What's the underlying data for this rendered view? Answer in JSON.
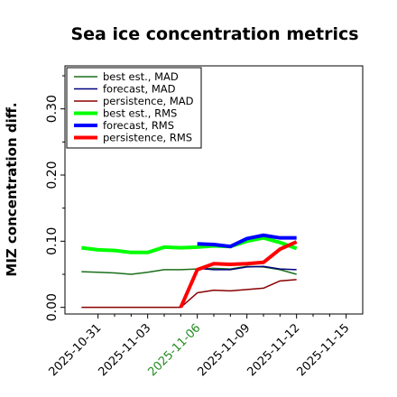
{
  "chart_data": {
    "type": "line",
    "title": "Sea ice concentration metrics",
    "ylabel": "MIZ concentration diff.",
    "xlabel": "",
    "ylim": [
      -0.01,
      0.365
    ],
    "xlim": [
      "2025-10-29",
      "2025-11-16"
    ],
    "y_ticks": [
      0.0,
      0.1,
      0.2,
      0.3
    ],
    "y_tick_labels": [
      "0.00",
      "0.10",
      "0.20",
      "0.30"
    ],
    "y_minor_ticks": [
      0.05,
      0.15,
      0.25,
      0.35
    ],
    "x_ticks": [
      "2025-10-31",
      "2025-11-03",
      "2025-11-06",
      "2025-11-09",
      "2025-11-12",
      "2025-11-15"
    ],
    "x_tick_labels": [
      "2025-10-31",
      "2025-11-03",
      "2025-11-06",
      "2025-11-09",
      "2025-11-12",
      "2025-11-15"
    ],
    "x_tick_colors": [
      "#000000",
      "#000000",
      "#228b22",
      "#000000",
      "#000000",
      "#000000"
    ],
    "x_minor_ticks": [
      "2025-11-01",
      "2025-11-02",
      "2025-11-04",
      "2025-11-05",
      "2025-11-07",
      "2025-11-08",
      "2025-11-10",
      "2025-11-11",
      "2025-11-13",
      "2025-11-14"
    ],
    "grid": false,
    "legend_position": "top-left",
    "series": [
      {
        "name": "best est., MAD",
        "color": "#1a6e1a",
        "width": 1.5,
        "x": [
          "2025-10-30",
          "2025-10-31",
          "2025-11-01",
          "2025-11-02",
          "2025-11-03",
          "2025-11-04",
          "2025-11-05",
          "2025-11-06",
          "2025-11-07",
          "2025-11-08",
          "2025-11-09",
          "2025-11-10",
          "2025-11-11",
          "2025-11-12"
        ],
        "values": [
          0.054,
          0.053,
          0.052,
          0.05,
          0.053,
          0.057,
          0.057,
          0.058,
          0.059,
          0.058,
          0.062,
          0.061,
          0.057,
          0.05
        ]
      },
      {
        "name": "forecast,  MAD",
        "color": "#000080",
        "width": 1.5,
        "x": [
          "2025-11-06",
          "2025-11-07",
          "2025-11-08",
          "2025-11-09",
          "2025-11-10",
          "2025-11-11",
          "2025-11-12"
        ],
        "values": [
          0.059,
          0.057,
          0.057,
          0.061,
          0.062,
          0.058,
          0.057
        ]
      },
      {
        "name": "persistence, MAD",
        "color": "#8b0000",
        "width": 1.5,
        "x": [
          "2025-10-30",
          "2025-10-31",
          "2025-11-01",
          "2025-11-02",
          "2025-11-03",
          "2025-11-04",
          "2025-11-05",
          "2025-11-06",
          "2025-11-07",
          "2025-11-08",
          "2025-11-09",
          "2025-11-10",
          "2025-11-11",
          "2025-11-12"
        ],
        "values": [
          0.0,
          0.0,
          0.0,
          0.0,
          0.0,
          0.0,
          0.0,
          0.022,
          0.026,
          0.025,
          0.027,
          0.029,
          0.04,
          0.042
        ]
      },
      {
        "name": "best est., RMS",
        "color": "#00ff00",
        "width": 4,
        "x": [
          "2025-10-30",
          "2025-10-31",
          "2025-11-01",
          "2025-11-02",
          "2025-11-03",
          "2025-11-04",
          "2025-11-05",
          "2025-11-06",
          "2025-11-07",
          "2025-11-08",
          "2025-11-09",
          "2025-11-10",
          "2025-11-11",
          "2025-11-12"
        ],
        "values": [
          0.09,
          0.087,
          0.086,
          0.083,
          0.083,
          0.091,
          0.09,
          0.091,
          0.093,
          0.092,
          0.1,
          0.105,
          0.098,
          0.089
        ]
      },
      {
        "name": "forecast,  RMS",
        "color": "#0000ff",
        "width": 4,
        "x": [
          "2025-11-06",
          "2025-11-07",
          "2025-11-08",
          "2025-11-09",
          "2025-11-10",
          "2025-11-11",
          "2025-11-12"
        ],
        "values": [
          0.096,
          0.095,
          0.092,
          0.104,
          0.109,
          0.105,
          0.105
        ]
      },
      {
        "name": "persistence, RMS",
        "color": "#ff0000",
        "width": 4,
        "x": [
          "2025-11-05",
          "2025-11-06",
          "2025-11-07",
          "2025-11-08",
          "2025-11-09",
          "2025-11-10",
          "2025-11-11",
          "2025-11-12"
        ],
        "values": [
          0.0,
          0.057,
          0.066,
          0.065,
          0.066,
          0.068,
          0.088,
          0.099
        ]
      }
    ]
  }
}
